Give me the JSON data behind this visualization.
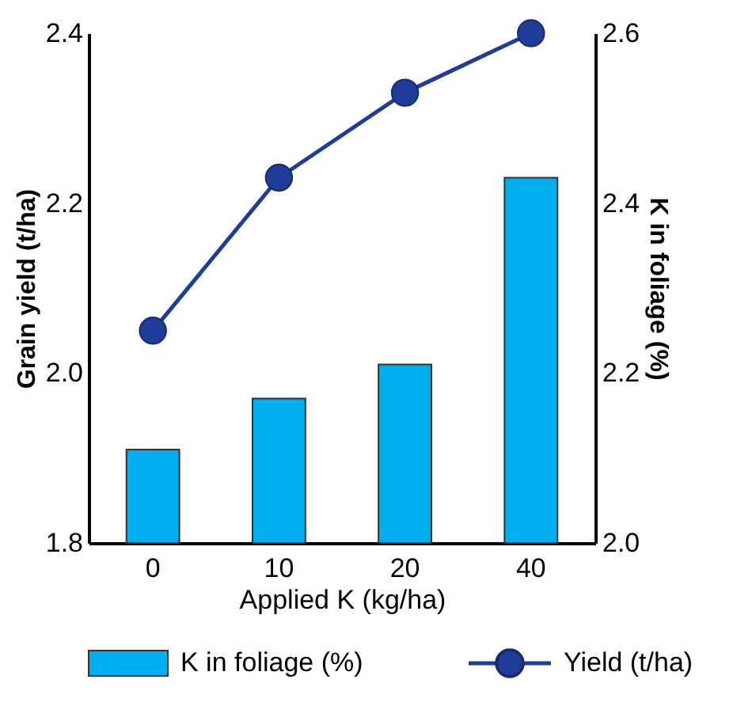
{
  "chart_data": {
    "type": "bar",
    "xlabel": "Applied K (kg/ha)",
    "ylabel": "Grain yield (t/ha)",
    "y2label": "K in foliage (%)",
    "categories": [
      "0",
      "10",
      "20",
      "40"
    ],
    "series": [
      {
        "name": "K in foliage (%)",
        "axis": "y2",
        "color": "#00aeef",
        "values": [
          2.11,
          2.17,
          2.21,
          2.43
        ]
      },
      {
        "name": "Yield (t/ha)",
        "type": "line",
        "axis": "y",
        "color": "#1f3c99",
        "marker": "circle",
        "values": [
          2.05,
          2.23,
          2.33,
          2.4
        ]
      }
    ],
    "ylim": [
      1.8,
      2.4
    ],
    "yticks": [
      1.8,
      {
        "value": 2,
        "label": "2.0"
      },
      2.2,
      2.4
    ],
    "y2lim": [
      2.0,
      2.6
    ],
    "y2ticks": [
      {
        "value": 2,
        "label": "2.0"
      },
      2.2,
      2.4,
      2.6
    ],
    "grid": false,
    "legend": "bottom"
  }
}
